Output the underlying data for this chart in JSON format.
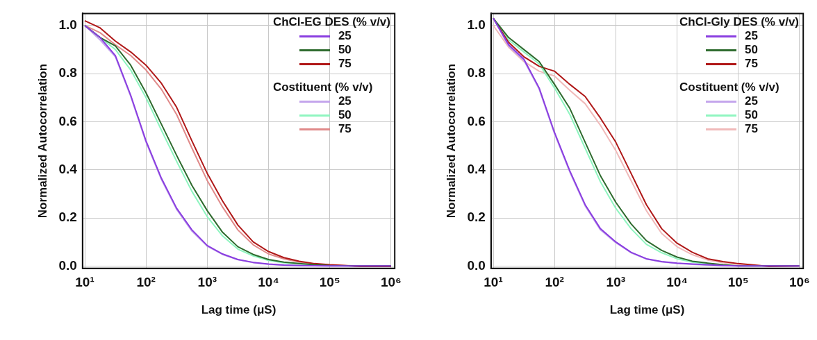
{
  "chart_data": [
    {
      "type": "line",
      "xlabel": "Lag time (μS)",
      "ylabel": "Normalized Autocorrelation",
      "legend_title": "ChCl-EG DES (% v/v)",
      "annotations": [
        "Costituent (% v/v)"
      ],
      "log": "x",
      "grid": true,
      "legend": "top right",
      "marker": "none",
      "line_style": "solid",
      "xlim": [
        9.2,
        1150000
      ],
      "ylim": [
        -0.01,
        1.05
      ],
      "xticks": [
        {
          "value": 10,
          "label": "10¹"
        },
        {
          "value": 100,
          "label": "10²"
        },
        {
          "value": 1000,
          "label": "10³"
        },
        {
          "value": 10000,
          "label": "10⁴"
        },
        {
          "value": 100000,
          "label": "10⁵"
        },
        {
          "value": 1000000,
          "label": "10⁶"
        }
      ],
      "yticks": [
        {
          "value": 0,
          "label": "0.0"
        },
        {
          "value": 0.2,
          "label": "0.2"
        },
        {
          "value": 0.4,
          "label": "0.4"
        },
        {
          "value": 0.6,
          "label": "0.6"
        },
        {
          "value": 0.8,
          "label": "0.8"
        },
        {
          "value": 1,
          "label": "1.0"
        }
      ],
      "x": [
        10,
        17.8,
        31.6,
        56.2,
        100,
        178,
        316,
        562,
        1000,
        1778,
        3162,
        5623,
        10000,
        17783,
        31623,
        56234,
        100000,
        316228,
        1000000
      ],
      "series": [
        {
          "name": "25",
          "color": "#8a3ee0",
          "values": [
            1.0,
            0.95,
            0.875,
            0.71,
            0.52,
            0.365,
            0.24,
            0.15,
            0.085,
            0.05,
            0.027,
            0.015,
            0.008,
            0.004,
            0.002,
            0.001,
            0.0,
            0.0,
            0.0
          ]
        },
        {
          "name": "50",
          "color": "#2e6b2e",
          "values": [
            1.0,
            0.95,
            0.915,
            0.835,
            0.72,
            0.59,
            0.46,
            0.335,
            0.23,
            0.14,
            0.08,
            0.048,
            0.027,
            0.016,
            0.01,
            0.005,
            0.002,
            0.0,
            0.0
          ]
        },
        {
          "name": "75",
          "color": "#b01818",
          "values": [
            1.02,
            0.99,
            0.935,
            0.89,
            0.835,
            0.76,
            0.66,
            0.52,
            0.385,
            0.27,
            0.17,
            0.1,
            0.06,
            0.035,
            0.02,
            0.01,
            0.005,
            -0.002,
            -0.002
          ]
        },
        {
          "name": "25",
          "color": "#c4a6ec",
          "values": [
            1.0,
            0.94,
            0.87,
            0.705,
            0.515,
            0.36,
            0.235,
            0.145,
            0.082,
            0.048,
            0.026,
            0.014,
            0.007,
            0.004,
            0.002,
            0.001,
            0.0,
            0.0,
            0.0
          ]
        },
        {
          "name": "50",
          "color": "#8ff5c0",
          "values": [
            1.0,
            0.95,
            0.9,
            0.815,
            0.7,
            0.565,
            0.435,
            0.31,
            0.205,
            0.125,
            0.07,
            0.042,
            0.023,
            0.013,
            0.008,
            0.004,
            null,
            null,
            null
          ]
        },
        {
          "name": "75",
          "color": "#e08a8a",
          "values": [
            1.0,
            0.97,
            0.92,
            0.875,
            0.815,
            0.735,
            0.63,
            0.49,
            0.355,
            0.245,
            0.15,
            0.088,
            0.05,
            0.03,
            0.017,
            0.008,
            0.004,
            0.0,
            0.0
          ]
        }
      ]
    },
    {
      "type": "line",
      "xlabel": "Lag time (μS)",
      "ylabel": "Normalized Autocorrelation",
      "legend_title": "ChCl-Gly DES (% v/v)",
      "annotations": [
        "Costituent (% v/v)"
      ],
      "log": "x",
      "grid": true,
      "legend": "top right",
      "marker": "none",
      "line_style": "solid",
      "xlim": [
        9.2,
        1150000
      ],
      "ylim": [
        -0.01,
        1.05
      ],
      "xticks": [
        {
          "value": 10,
          "label": "10¹"
        },
        {
          "value": 100,
          "label": "10²"
        },
        {
          "value": 1000,
          "label": "10³"
        },
        {
          "value": 10000,
          "label": "10⁴"
        },
        {
          "value": 100000,
          "label": "10⁵"
        },
        {
          "value": 1000000,
          "label": "10⁶"
        }
      ],
      "yticks": [
        {
          "value": 0,
          "label": "0.0"
        },
        {
          "value": 0.2,
          "label": "0.2"
        },
        {
          "value": 0.4,
          "label": "0.4"
        },
        {
          "value": 0.6,
          "label": "0.6"
        },
        {
          "value": 0.8,
          "label": "0.8"
        },
        {
          "value": 1,
          "label": "1.0"
        }
      ],
      "x": [
        10,
        17.8,
        31.6,
        56.2,
        100,
        178,
        316,
        562,
        1000,
        1778,
        3162,
        5623,
        10000,
        17783,
        31623,
        56234,
        100000,
        316228,
        1000000
      ],
      "series": [
        {
          "name": "25",
          "color": "#8a3ee0",
          "values": [
            1.03,
            0.92,
            0.86,
            0.74,
            0.555,
            0.395,
            0.255,
            0.155,
            0.1,
            0.057,
            0.03,
            0.018,
            0.012,
            0.008,
            0.005,
            0.002,
            0.0,
            0.0,
            0.0
          ]
        },
        {
          "name": "50",
          "color": "#2e6b2e",
          "values": [
            1.03,
            0.95,
            0.9,
            0.85,
            0.755,
            0.655,
            0.515,
            0.375,
            0.265,
            0.175,
            0.105,
            0.065,
            0.037,
            0.02,
            0.012,
            0.005,
            0.0,
            0.0,
            0.0
          ]
        },
        {
          "name": "75",
          "color": "#b01818",
          "values": [
            1.03,
            0.93,
            0.87,
            0.83,
            0.81,
            0.755,
            0.705,
            0.615,
            0.515,
            0.385,
            0.255,
            0.155,
            0.095,
            0.057,
            0.03,
            0.018,
            0.01,
            -0.002,
            0.0
          ]
        },
        {
          "name": "25",
          "color": "#c4a6ec",
          "values": [
            1.03,
            0.915,
            0.855,
            0.735,
            0.55,
            0.39,
            0.25,
            0.15,
            0.097,
            0.055,
            0.029,
            0.017,
            0.011,
            0.007,
            0.004,
            0.002,
            0.0,
            0.0,
            0.0
          ]
        },
        {
          "name": "50",
          "color": "#8ff5c0",
          "values": [
            1.03,
            0.94,
            0.89,
            0.84,
            0.74,
            0.63,
            0.49,
            0.35,
            0.24,
            0.155,
            0.09,
            0.055,
            0.03,
            0.016,
            0.009,
            0.004,
            null,
            null,
            null
          ]
        },
        {
          "name": "75",
          "color": "#f0baba",
          "values": [
            1.0,
            0.91,
            0.85,
            0.81,
            0.79,
            0.73,
            0.675,
            0.585,
            0.48,
            0.355,
            0.23,
            0.135,
            0.08,
            0.047,
            0.025,
            0.014,
            0.007,
            0.0,
            0.0
          ]
        }
      ]
    }
  ]
}
